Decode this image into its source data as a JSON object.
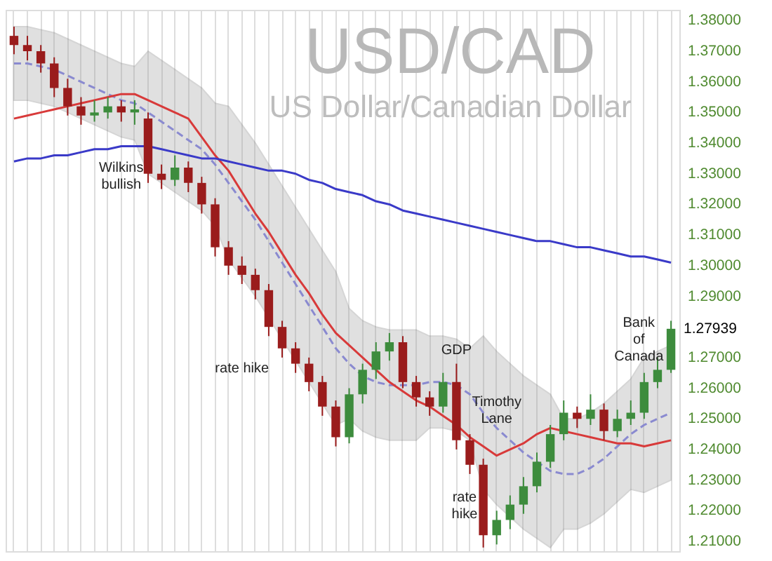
{
  "chart_data": {
    "type": "candlestick",
    "title": "USD/CAD",
    "subtitle": "US Dollar/Canadian Dollar",
    "categories": [
      null,
      null,
      null,
      null,
      null,
      null,
      null,
      null,
      null,
      null,
      null,
      null,
      null,
      null,
      null,
      null,
      null,
      null,
      null,
      null,
      null,
      null,
      null,
      null,
      null,
      null,
      null,
      null,
      null,
      null,
      null,
      null,
      null,
      null,
      null,
      null,
      null,
      null,
      null,
      null,
      null,
      null,
      null,
      null,
      null,
      null,
      null,
      null,
      null,
      null
    ],
    "ohlc": [
      [
        1.375,
        1.378,
        1.369,
        1.372
      ],
      [
        1.372,
        1.375,
        1.367,
        1.37
      ],
      [
        1.37,
        1.372,
        1.363,
        1.366
      ],
      [
        1.366,
        1.368,
        1.355,
        1.358
      ],
      [
        1.358,
        1.361,
        1.349,
        1.352
      ],
      [
        1.352,
        1.355,
        1.346,
        1.349
      ],
      [
        1.349,
        1.354,
        1.347,
        1.35
      ],
      [
        1.35,
        1.355,
        1.348,
        1.352
      ],
      [
        1.352,
        1.354,
        1.347,
        1.35
      ],
      [
        1.35,
        1.354,
        1.346,
        1.351
      ],
      [
        1.348,
        1.35,
        1.327,
        1.33
      ],
      [
        1.33,
        1.333,
        1.325,
        1.328
      ],
      [
        1.328,
        1.336,
        1.326,
        1.332
      ],
      [
        1.332,
        1.334,
        1.324,
        1.327
      ],
      [
        1.327,
        1.329,
        1.317,
        1.32
      ],
      [
        1.32,
        1.322,
        1.303,
        1.306
      ],
      [
        1.306,
        1.308,
        1.297,
        1.3
      ],
      [
        1.3,
        1.303,
        1.294,
        1.297
      ],
      [
        1.297,
        1.299,
        1.289,
        1.292
      ],
      [
        1.292,
        1.294,
        1.277,
        1.28
      ],
      [
        1.28,
        1.282,
        1.27,
        1.273
      ],
      [
        1.273,
        1.275,
        1.265,
        1.268
      ],
      [
        1.268,
        1.27,
        1.259,
        1.262
      ],
      [
        1.262,
        1.264,
        1.251,
        1.254
      ],
      [
        1.254,
        1.256,
        1.241,
        1.244
      ],
      [
        1.244,
        1.26,
        1.242,
        1.258
      ],
      [
        1.258,
        1.268,
        1.255,
        1.266
      ],
      [
        1.266,
        1.275,
        1.263,
        1.272
      ],
      [
        1.272,
        1.278,
        1.269,
        1.275
      ],
      [
        1.275,
        1.277,
        1.26,
        1.262
      ],
      [
        1.262,
        1.264,
        1.254,
        1.257
      ],
      [
        1.257,
        1.259,
        1.251,
        1.254
      ],
      [
        1.254,
        1.265,
        1.252,
        1.262
      ],
      [
        1.262,
        1.268,
        1.24,
        1.243
      ],
      [
        1.243,
        1.245,
        1.232,
        1.235
      ],
      [
        1.235,
        1.237,
        1.208,
        1.212
      ],
      [
        1.212,
        1.22,
        1.209,
        1.217
      ],
      [
        1.217,
        1.225,
        1.214,
        1.222
      ],
      [
        1.222,
        1.231,
        1.219,
        1.228
      ],
      [
        1.228,
        1.239,
        1.226,
        1.236
      ],
      [
        1.236,
        1.248,
        1.234,
        1.245
      ],
      [
        1.245,
        1.256,
        1.243,
        1.252
      ],
      [
        1.252,
        1.254,
        1.247,
        1.25
      ],
      [
        1.25,
        1.258,
        1.248,
        1.253
      ],
      [
        1.253,
        1.255,
        1.243,
        1.246
      ],
      [
        1.246,
        1.253,
        1.244,
        1.25
      ],
      [
        1.25,
        1.256,
        1.248,
        1.252
      ],
      [
        1.252,
        1.265,
        1.25,
        1.262
      ],
      [
        1.262,
        1.27,
        1.26,
        1.266
      ],
      [
        1.266,
        1.282,
        1.265,
        1.27939
      ]
    ],
    "colors": [
      "#9a1c1c",
      "#9a1c1c",
      "#9a1c1c",
      "#9a1c1c",
      "#9a1c1c",
      "#9a1c1c",
      "#3d8c3d",
      "#3d8c3d",
      "#9a1c1c",
      "#3d8c3d",
      "#9a1c1c",
      "#9a1c1c",
      "#3d8c3d",
      "#9a1c1c",
      "#9a1c1c",
      "#9a1c1c",
      "#9a1c1c",
      "#9a1c1c",
      "#9a1c1c",
      "#9a1c1c",
      "#9a1c1c",
      "#9a1c1c",
      "#9a1c1c",
      "#9a1c1c",
      "#9a1c1c",
      "#3d8c3d",
      "#3d8c3d",
      "#3d8c3d",
      "#3d8c3d",
      "#9a1c1c",
      "#9a1c1c",
      "#9a1c1c",
      "#3d8c3d",
      "#9a1c1c",
      "#9a1c1c",
      "#9a1c1c",
      "#3d8c3d",
      "#3d8c3d",
      "#3d8c3d",
      "#3d8c3d",
      "#3d8c3d",
      "#3d8c3d",
      "#9a1c1c",
      "#3d8c3d",
      "#9a1c1c",
      "#3d8c3d",
      "#3d8c3d",
      "#3d8c3d",
      "#3d8c3d",
      "#3d8c3d"
    ],
    "series": [
      {
        "type": "line",
        "color": "#8a8ad0",
        "line_style": "dashed",
        "values": [
          1.366,
          1.366,
          1.365,
          1.364,
          1.362,
          1.36,
          1.358,
          1.356,
          1.354,
          1.353,
          1.35,
          1.347,
          1.344,
          1.341,
          1.338,
          1.333,
          1.327,
          1.321,
          1.315,
          1.308,
          1.301,
          1.294,
          1.287,
          1.28,
          1.273,
          1.268,
          1.264,
          1.262,
          1.261,
          1.261,
          1.261,
          1.262,
          1.262,
          1.261,
          1.258,
          1.252,
          1.247,
          1.243,
          1.239,
          1.236,
          1.233,
          1.232,
          1.232,
          1.234,
          1.237,
          1.241,
          1.245,
          1.248,
          1.25,
          1.252
        ],
        "upper": [
          1.378,
          1.378,
          1.377,
          1.376,
          1.374,
          1.372,
          1.37,
          1.368,
          1.366,
          1.365,
          1.37,
          1.367,
          1.364,
          1.361,
          1.358,
          1.353,
          1.352,
          1.346,
          1.34,
          1.333,
          1.326,
          1.319,
          1.312,
          1.305,
          1.298,
          1.286,
          1.282,
          1.28,
          1.279,
          1.279,
          1.279,
          1.277,
          1.277,
          1.276,
          1.273,
          1.277,
          1.272,
          1.268,
          1.264,
          1.261,
          1.258,
          1.25,
          1.25,
          1.252,
          1.255,
          1.259,
          1.263,
          1.27,
          1.272,
          1.274
        ],
        "lower": [
          1.354,
          1.354,
          1.353,
          1.352,
          1.35,
          1.348,
          1.346,
          1.344,
          1.342,
          1.341,
          1.33,
          1.327,
          1.324,
          1.321,
          1.318,
          1.313,
          1.302,
          1.296,
          1.29,
          1.283,
          1.276,
          1.269,
          1.262,
          1.255,
          1.248,
          1.25,
          1.246,
          1.244,
          1.243,
          1.243,
          1.243,
          1.247,
          1.247,
          1.246,
          1.243,
          1.227,
          1.222,
          1.218,
          1.214,
          1.211,
          1.208,
          1.214,
          1.214,
          1.216,
          1.219,
          1.223,
          1.227,
          1.226,
          1.228,
          1.23
        ]
      },
      {
        "type": "line",
        "color": "#d83a3a",
        "line_style": "solid",
        "values": [
          1.348,
          1.349,
          1.35,
          1.351,
          1.352,
          1.353,
          1.354,
          1.355,
          1.356,
          1.356,
          1.354,
          1.352,
          1.35,
          1.348,
          1.342,
          1.336,
          1.331,
          1.324,
          1.317,
          1.311,
          1.304,
          1.297,
          1.291,
          1.284,
          1.278,
          1.274,
          1.27,
          1.266,
          1.262,
          1.259,
          1.256,
          1.254,
          1.251,
          1.248,
          1.244,
          1.241,
          1.238,
          1.24,
          1.242,
          1.245,
          1.247,
          1.246,
          1.245,
          1.244,
          1.243,
          1.242,
          1.242,
          1.241,
          1.242,
          1.243
        ]
      },
      {
        "type": "line",
        "color": "#3a3ac8",
        "line_style": "solid",
        "values": [
          1.334,
          1.335,
          1.335,
          1.336,
          1.336,
          1.337,
          1.338,
          1.338,
          1.339,
          1.339,
          1.339,
          1.338,
          1.337,
          1.336,
          1.335,
          1.335,
          1.334,
          1.333,
          1.332,
          1.331,
          1.331,
          1.33,
          1.328,
          1.327,
          1.325,
          1.324,
          1.323,
          1.321,
          1.32,
          1.318,
          1.317,
          1.316,
          1.315,
          1.314,
          1.313,
          1.312,
          1.311,
          1.31,
          1.309,
          1.308,
          1.308,
          1.307,
          1.306,
          1.306,
          1.305,
          1.304,
          1.303,
          1.303,
          1.302,
          1.301
        ]
      }
    ],
    "ylim": [
      1.2068,
      1.3835
    ],
    "yticks": [
      {
        "value": 1.21,
        "label": "1.21000"
      },
      {
        "value": 1.22,
        "label": "1.22000"
      },
      {
        "value": 1.23,
        "label": "1.23000"
      },
      {
        "value": 1.24,
        "label": "1.24000"
      },
      {
        "value": 1.25,
        "label": "1.25000"
      },
      {
        "value": 1.26,
        "label": "1.26000"
      },
      {
        "value": 1.27,
        "label": "1.27000"
      },
      {
        "value": 1.29,
        "label": "1.29000"
      },
      {
        "value": 1.3,
        "label": "1.30000"
      },
      {
        "value": 1.31,
        "label": "1.31000"
      },
      {
        "value": 1.32,
        "label": "1.32000"
      },
      {
        "value": 1.33,
        "label": "1.33000"
      },
      {
        "value": 1.34,
        "label": "1.34000"
      },
      {
        "value": 1.35,
        "label": "1.35000"
      },
      {
        "value": 1.36,
        "label": "1.36000"
      },
      {
        "value": 1.37,
        "label": "1.37000"
      },
      {
        "value": 1.38,
        "label": "1.38000"
      }
    ],
    "annotations": [
      "Wilkins bullish",
      "rate hike",
      "GDP",
      "Timothy Lane",
      "rate hike",
      "Bank of Canada",
      "1.27939"
    ],
    "grid": "x",
    "tick_labels": "y"
  }
}
